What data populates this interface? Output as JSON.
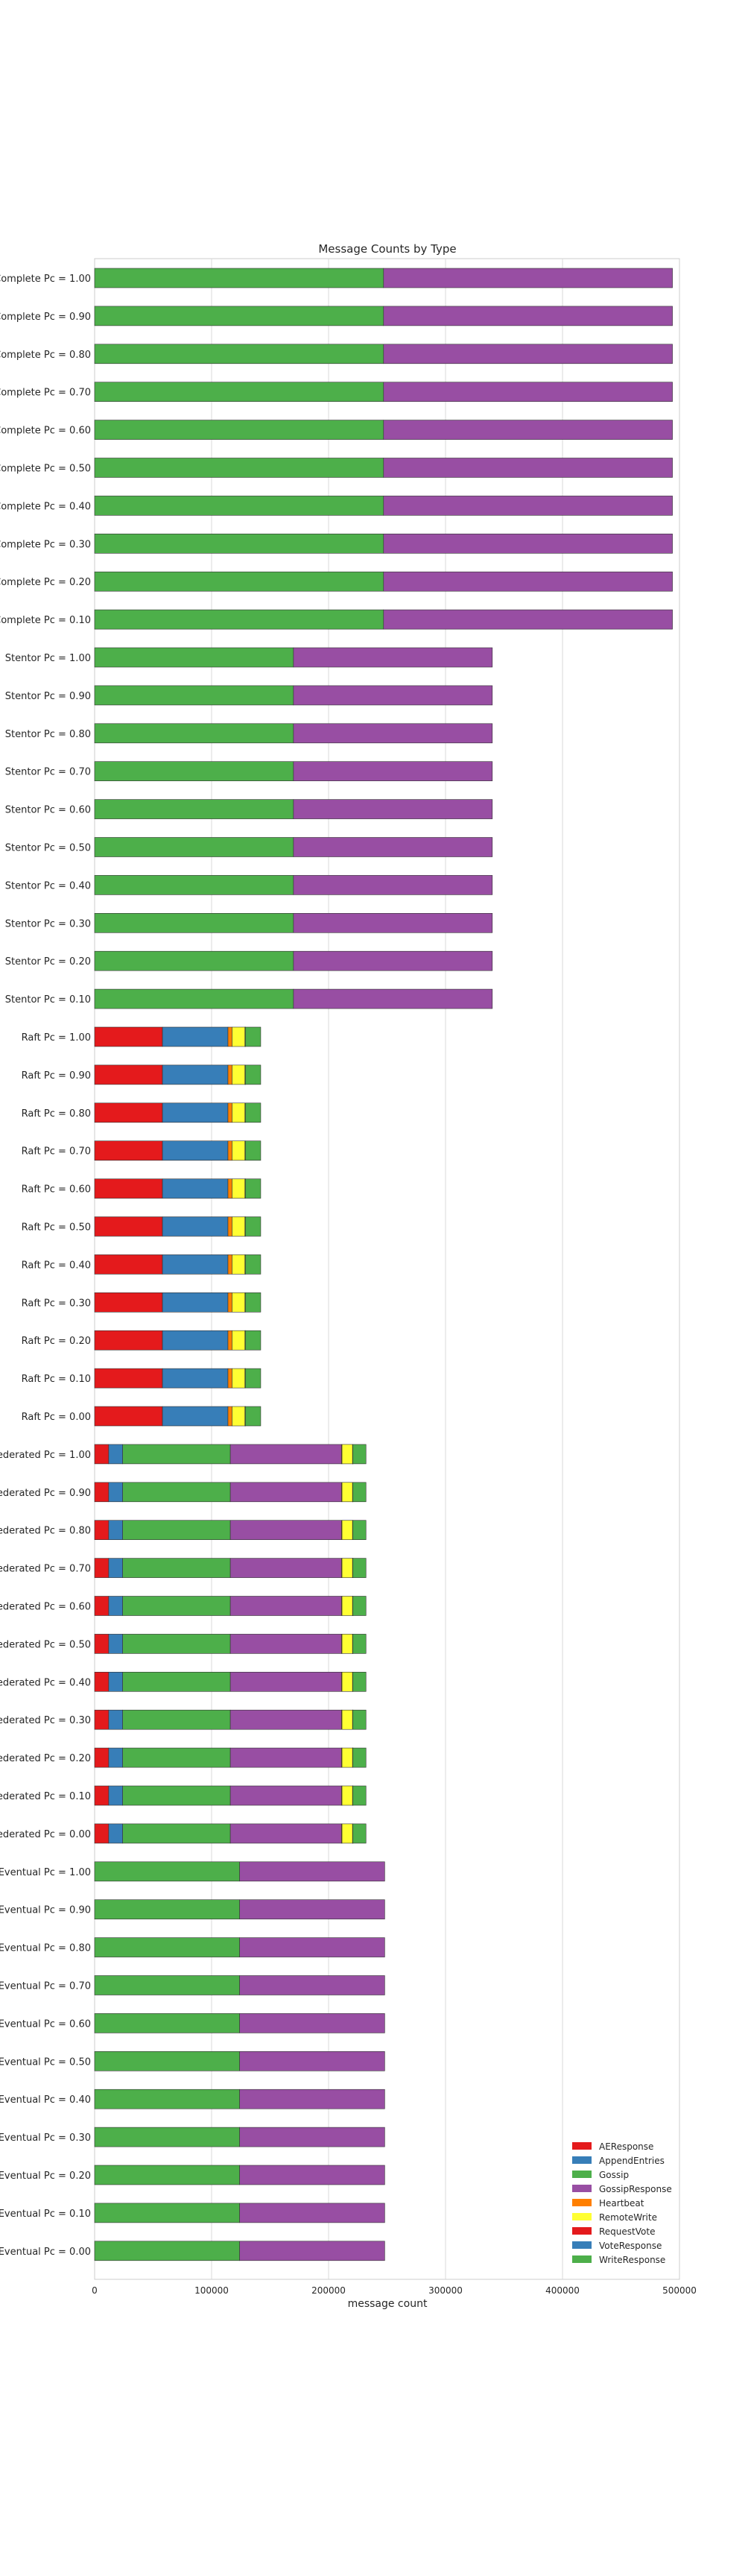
{
  "chart_data": {
    "type": "bar",
    "orientation": "horizontal",
    "stacked": true,
    "title": "Message Counts by Type",
    "xlabel": "message count",
    "ylabel": "",
    "xlim": [
      0,
      500000
    ],
    "xticks": [
      0,
      100000,
      200000,
      300000,
      400000,
      500000
    ],
    "xtick_labels": [
      "0",
      "100000",
      "200000",
      "300000",
      "400000",
      "500000"
    ],
    "grid": "vertical",
    "legend_position": "lower-right",
    "legend": [
      "AEResponse",
      "AppendEntries",
      "Gossip",
      "GossipResponse",
      "Heartbeat",
      "RemoteWrite",
      "RequestVote",
      "VoteResponse",
      "WriteResponse"
    ],
    "colors": {
      "AEResponse": "#e41a1c",
      "AppendEntries": "#377eb8",
      "Gossip": "#4daf4a",
      "GossipResponse": "#984ea3",
      "Heartbeat": "#ff7f00",
      "RemoteWrite": "#ffff33",
      "RequestVote": "#e41a1c",
      "VoteResponse": "#377eb8",
      "WriteResponse": "#4daf4a"
    },
    "groups": [
      {
        "label_prefix": "Complete",
        "pcs": [
          "1.00",
          "0.90",
          "0.80",
          "0.70",
          "0.60",
          "0.50",
          "0.40",
          "0.30",
          "0.20",
          "0.10"
        ],
        "stack": {
          "AEResponse": 0,
          "AppendEntries": 0,
          "Gossip": 247000,
          "GossipResponse": 247000,
          "Heartbeat": 0,
          "RemoteWrite": 0,
          "RequestVote": 0,
          "VoteResponse": 0,
          "WriteResponse": 0
        }
      },
      {
        "label_prefix": "Stentor",
        "pcs": [
          "1.00",
          "0.90",
          "0.80",
          "0.70",
          "0.60",
          "0.50",
          "0.40",
          "0.30",
          "0.20",
          "0.10"
        ],
        "stack": {
          "AEResponse": 0,
          "AppendEntries": 0,
          "Gossip": 170000,
          "GossipResponse": 170000,
          "Heartbeat": 0,
          "RemoteWrite": 0,
          "RequestVote": 0,
          "VoteResponse": 0,
          "WriteResponse": 0
        }
      },
      {
        "label_prefix": "Raft",
        "pcs": [
          "1.00",
          "0.90",
          "0.80",
          "0.70",
          "0.60",
          "0.50",
          "0.40",
          "0.30",
          "0.20",
          "0.10",
          "0.00"
        ],
        "stack": {
          "AEResponse": 58000,
          "AppendEntries": 56000,
          "Gossip": 0,
          "GossipResponse": 0,
          "Heartbeat": 3500,
          "RemoteWrite": 11000,
          "RequestVote": 200,
          "VoteResponse": 200,
          "WriteResponse": 13100
        }
      },
      {
        "label_prefix": "Federated",
        "pcs": [
          "1.00",
          "0.90",
          "0.80",
          "0.70",
          "0.60",
          "0.50",
          "0.40",
          "0.30",
          "0.20",
          "0.10",
          "0.00"
        ],
        "stack": {
          "AEResponse": 12000,
          "AppendEntries": 12000,
          "Gossip": 92000,
          "GossipResponse": 95000,
          "Heartbeat": 500,
          "RemoteWrite": 9000,
          "RequestVote": 100,
          "VoteResponse": 100,
          "WriteResponse": 11300
        }
      },
      {
        "label_prefix": "Eventual",
        "pcs": [
          "1.00",
          "0.90",
          "0.80",
          "0.70",
          "0.60",
          "0.50",
          "0.40",
          "0.30",
          "0.20",
          "0.10",
          "0.00"
        ],
        "stack": {
          "AEResponse": 0,
          "AppendEntries": 0,
          "Gossip": 124000,
          "GossipResponse": 124000,
          "Heartbeat": 0,
          "RemoteWrite": 0,
          "RequestVote": 0,
          "VoteResponse": 0,
          "WriteResponse": 0
        }
      }
    ]
  }
}
